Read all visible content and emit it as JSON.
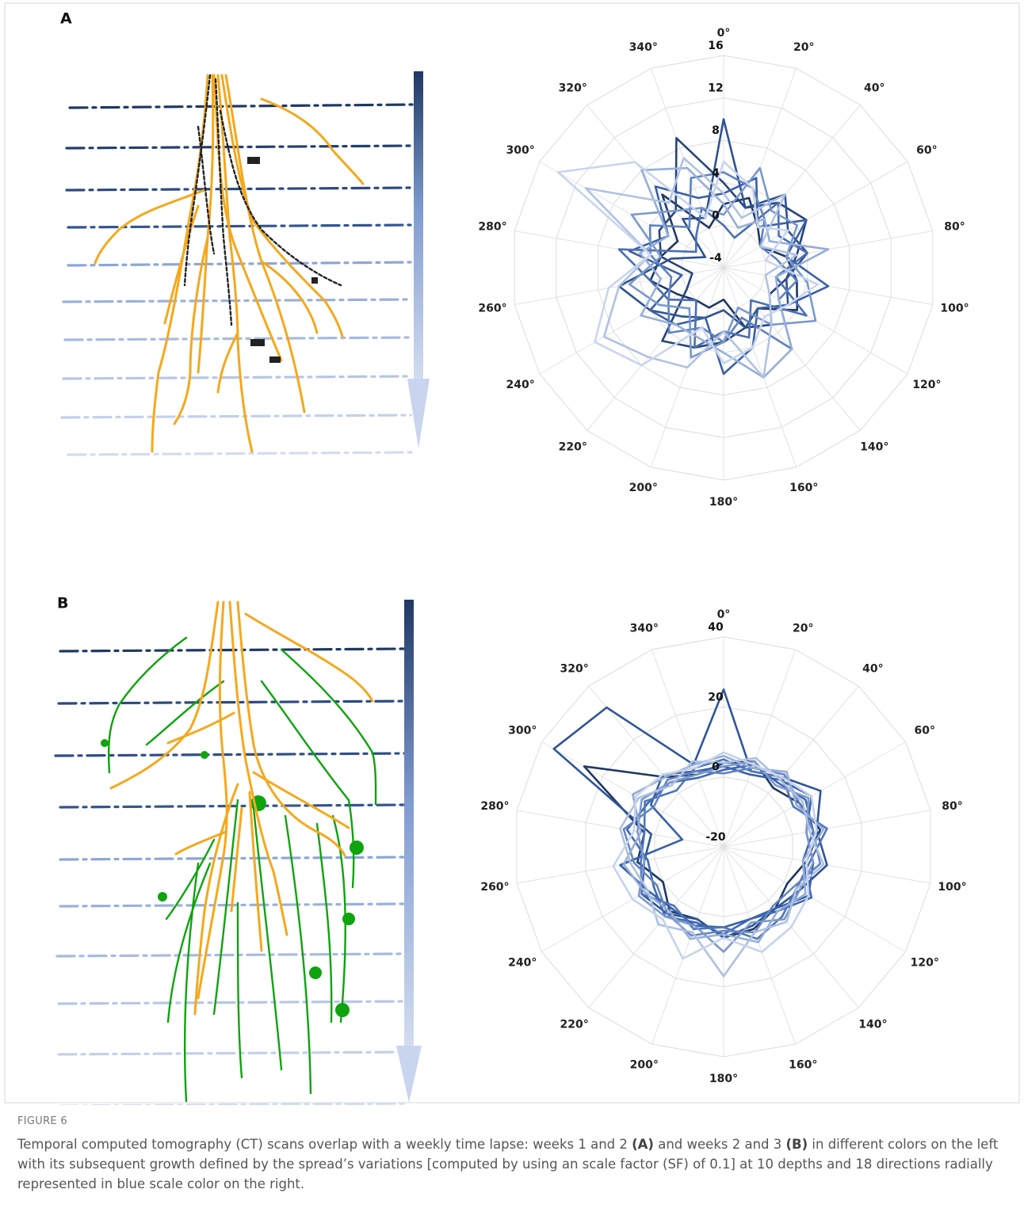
{
  "figure": {
    "panels": [
      {
        "label": "A"
      },
      {
        "label": "B"
      }
    ],
    "number": "FIGURE 6",
    "caption": [
      "Temporal computed tomography (CT) scans overlap with a weekly time lapse: weeks 1 and 2 ",
      "(A)",
      " and weeks 2 and 3 ",
      "(B)",
      " in different colors on the left with its subsequent growth defined by the spread’s variations [computed by using an scale factor (SF) of 0.1] at 10 depths and 18 directions radially represented in blue scale color on the right."
    ]
  },
  "chart_data": [
    {
      "type": "radar",
      "categories": [
        "0°",
        "20°",
        "40°",
        "60°",
        "80°",
        "100°",
        "120°",
        "140°",
        "160°",
        "180°",
        "200°",
        "220°",
        "240°",
        "260°",
        "280°",
        "300°",
        "320°",
        "340°"
      ],
      "rlim": [
        -4,
        16
      ],
      "rticks": [
        -4,
        0,
        4,
        8,
        12,
        16
      ],
      "grid": true,
      "series": [
        {
          "color": "#1f3864",
          "values": [
            2,
            3,
            1,
            0,
            2,
            3,
            4,
            1,
            2,
            -1,
            0,
            0,
            1,
            3,
            2,
            1,
            5,
            0
          ]
        },
        {
          "color": "#26447a",
          "values": [
            4,
            2,
            4,
            5,
            3,
            2,
            1,
            3,
            2,
            3,
            4,
            5,
            0,
            -1,
            2,
            3,
            3,
            9
          ]
        },
        {
          "color": "#2e5290",
          "values": [
            10,
            2,
            5,
            3,
            4,
            2,
            3,
            1,
            2,
            0,
            1,
            2,
            4,
            6,
            1,
            -2,
            2,
            1
          ]
        },
        {
          "color": "#3a60a4",
          "values": [
            3,
            5,
            1,
            5,
            2,
            6,
            3,
            1,
            4,
            6,
            1,
            3,
            4,
            0,
            5,
            2,
            6,
            3
          ]
        },
        {
          "color": "#4a6fb3",
          "values": [
            0,
            -1,
            4,
            2,
            4,
            1,
            5,
            0,
            3,
            2,
            4,
            0,
            2,
            3,
            6,
            -1,
            0,
            2
          ]
        },
        {
          "color": "#5f82c0",
          "values": [
            5,
            4,
            2,
            0,
            1,
            3,
            2,
            6,
            1,
            3,
            2,
            4,
            2,
            1,
            3,
            4,
            1,
            5
          ]
        },
        {
          "color": "#7a98cc",
          "values": [
            1,
            6,
            3,
            4,
            2,
            4,
            6,
            3,
            0,
            3,
            5,
            1,
            3,
            5,
            2,
            6,
            3,
            2
          ]
        },
        {
          "color": "#96aed8",
          "values": [
            2,
            0,
            2,
            1,
            6,
            1,
            2,
            6,
            7,
            4,
            3,
            3,
            5,
            2,
            4,
            2,
            8,
            6
          ]
        },
        {
          "color": "#b0c2e2",
          "values": [
            3,
            1,
            5,
            0,
            3,
            0,
            1,
            3,
            7,
            2,
            6,
            7,
            9,
            6,
            3,
            11,
            4,
            7
          ]
        },
        {
          "color": "#c9d5ee",
          "values": [
            6,
            4,
            1,
            3,
            0,
            5,
            3,
            2,
            4,
            5,
            2,
            8,
            10,
            7,
            3,
            14,
            9,
            1
          ]
        }
      ]
    },
    {
      "type": "radar",
      "categories": [
        "0°",
        "20°",
        "40°",
        "60°",
        "80°",
        "100°",
        "120°",
        "140°",
        "160°",
        "180°",
        "200°",
        "220°",
        "240°",
        "260°",
        "280°",
        "300°",
        "320°",
        "340°"
      ],
      "rlim": [
        -20,
        40
      ],
      "rticks": [
        -20,
        0,
        20,
        40
      ],
      "grid": true,
      "series": [
        {
          "color": "#1f3864",
          "values": [
            4,
            6,
            2,
            5,
            8,
            4,
            1,
            3,
            5,
            6,
            2,
            4,
            0,
            5,
            3,
            26,
            6,
            2
          ]
        },
        {
          "color": "#2e5597",
          "values": [
            25,
            3,
            6,
            12,
            7,
            10,
            5,
            3,
            4,
            6,
            2,
            5,
            7,
            3,
            1,
            36,
            32,
            5
          ]
        },
        {
          "color": "#3660a8",
          "values": [
            3,
            2,
            5,
            9,
            4,
            6,
            8,
            3,
            2,
            3,
            4,
            3,
            5,
            10,
            -8,
            4,
            7,
            3
          ]
        },
        {
          "color": "#4069b2",
          "values": [
            2,
            5,
            4,
            7,
            6,
            3,
            9,
            4,
            2,
            5,
            3,
            6,
            3,
            2,
            8,
            5,
            4,
            1
          ]
        },
        {
          "color": "#5076ba",
          "values": [
            5,
            3,
            6,
            3,
            10,
            5,
            4,
            6,
            8,
            3,
            5,
            2,
            7,
            4,
            3,
            6,
            1,
            4
          ]
        },
        {
          "color": "#6585c2",
          "values": [
            1,
            4,
            7,
            5,
            6,
            8,
            3,
            2,
            6,
            4,
            7,
            5,
            2,
            6,
            9,
            3,
            5,
            3
          ]
        },
        {
          "color": "#7c98cc",
          "values": [
            3,
            6,
            3,
            8,
            4,
            6,
            5,
            7,
            3,
            10,
            4,
            6,
            8,
            3,
            5,
            7,
            4,
            2
          ]
        },
        {
          "color": "#95acd7",
          "values": [
            6,
            4,
            8,
            4,
            9,
            3,
            7,
            4,
            9,
            5,
            8,
            4,
            6,
            9,
            4,
            10,
            6,
            5
          ]
        },
        {
          "color": "#adc0e1",
          "values": [
            4,
            7,
            5,
            6,
            5,
            9,
            4,
            8,
            6,
            17,
            6,
            9,
            5,
            7,
            10,
            8,
            3,
            6
          ]
        },
        {
          "color": "#c6d3ec",
          "values": [
            7,
            5,
            6,
            9,
            7,
            4,
            8,
            10,
            12,
            6,
            14,
            7,
            10,
            12,
            6,
            9,
            7,
            4
          ]
        }
      ]
    }
  ]
}
